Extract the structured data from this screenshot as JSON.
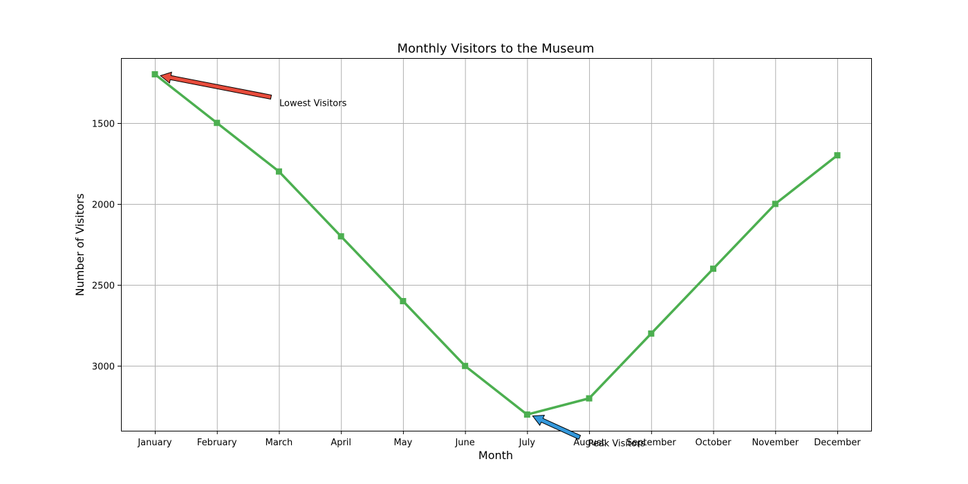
{
  "chart_data": {
    "type": "line",
    "title": "Monthly Visitors to the Museum",
    "xlabel": "Month",
    "ylabel": "Number of Visitors",
    "categories": [
      "January",
      "February",
      "March",
      "April",
      "May",
      "June",
      "July",
      "August",
      "September",
      "October",
      "November",
      "December"
    ],
    "series": [
      {
        "values": [
          1200,
          1500,
          1800,
          2200,
          2600,
          3000,
          3300,
          3200,
          2800,
          2400,
          2000,
          1700
        ],
        "color": "#4caf50",
        "marker": "square"
      }
    ],
    "ylim": [
      3400,
      1100
    ],
    "y_inverted": true,
    "yticks": [
      1500,
      2000,
      2500,
      3000
    ],
    "grid": true,
    "annotations": [
      {
        "text": "Lowest Visitors",
        "target_category": "January",
        "target_value": 1200,
        "arrow_color": "#e74c3c"
      },
      {
        "text": "Peak Visitors",
        "target_category": "July",
        "target_value": 3300,
        "arrow_color": "#3498db"
      }
    ]
  }
}
